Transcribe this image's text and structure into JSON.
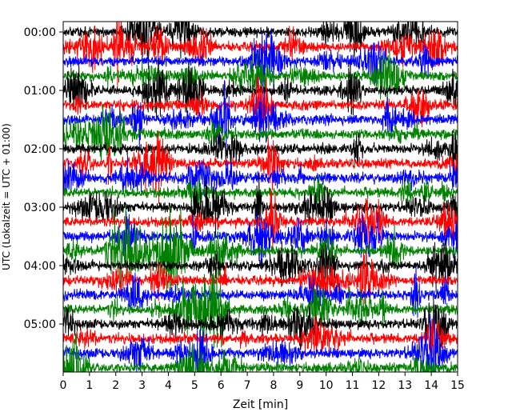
{
  "chart_data": {
    "type": "line",
    "title": "",
    "xlabel": "Zeit  [min]",
    "ylabel": "UTC (Lokalzeit = UTC + 01:00)",
    "x_ticks": [
      "0",
      "1",
      "2",
      "3",
      "4",
      "5",
      "6",
      "7",
      "8",
      "9",
      "10",
      "11",
      "12",
      "13",
      "14",
      "15"
    ],
    "xlim": [
      0,
      15
    ],
    "y_ticks": [
      "00:00",
      "01:00",
      "02:00",
      "03:00",
      "04:00",
      "05:00"
    ],
    "trace_interval_min": 15,
    "trace_count": 24,
    "ylim_hours": [
      0,
      6
    ],
    "colors": [
      "#000000",
      "#ff0000",
      "#0000ff",
      "#008000"
    ],
    "grid": false,
    "legend": "none"
  }
}
